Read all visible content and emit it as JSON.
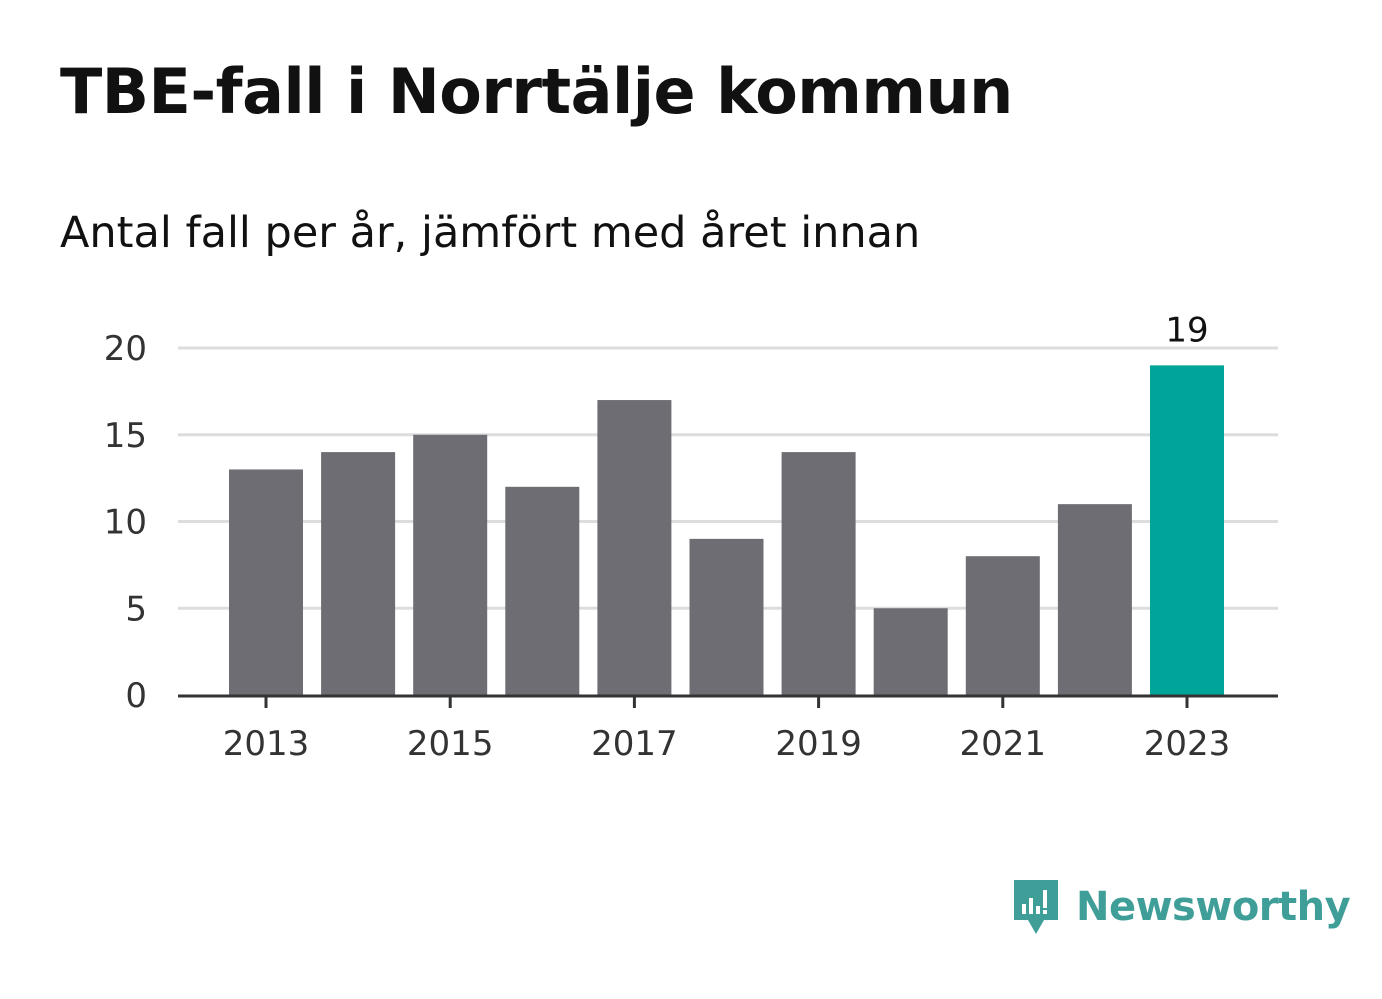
{
  "title": "TBE-fall i Norrtälje kommun",
  "subtitle": "Antal fall per år, jämfört med året innan",
  "brand": {
    "name": "Newsworthy",
    "icon": "newsworthy-logo-icon",
    "color": "#3f9e98"
  },
  "colors": {
    "bar": "#6e6d73",
    "highlight": "#00a499",
    "grid": "#dddddd",
    "axis": "#333333"
  },
  "chart_data": {
    "type": "bar",
    "title": "TBE-fall i Norrtälje kommun",
    "subtitle": "Antal fall per år, jämfört med året innan",
    "xlabel": "",
    "ylabel": "",
    "categories": [
      2013,
      2014,
      2015,
      2016,
      2017,
      2018,
      2019,
      2020,
      2021,
      2022,
      2023
    ],
    "values": [
      13,
      14,
      15,
      12,
      17,
      9,
      14,
      5,
      8,
      11,
      19
    ],
    "x_tick_labels": [
      "2013",
      "2015",
      "2017",
      "2019",
      "2021",
      "2023"
    ],
    "y_tick_labels": [
      "0",
      "5",
      "10",
      "15",
      "20"
    ],
    "ylim": [
      0,
      20
    ],
    "yticks": [
      0,
      5,
      10,
      15,
      20
    ],
    "highlight_category": 2023,
    "data_labels": [
      {
        "category": 2023,
        "label": "19"
      }
    ],
    "grid": true,
    "legend": "none"
  }
}
